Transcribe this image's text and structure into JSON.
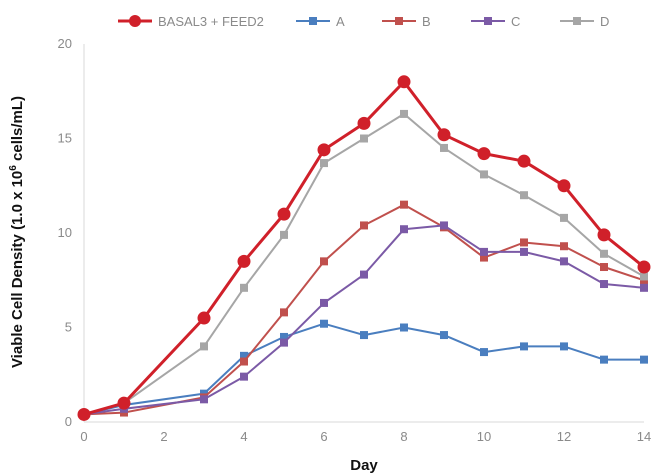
{
  "chart_data": {
    "type": "line",
    "title": "",
    "xlabel": "Day",
    "ylabel_main": "Viable Cell Density (1.0 x 10",
    "ylabel_sup": "6",
    "ylabel_tail": " cells/mL)",
    "xlim": [
      0,
      14
    ],
    "ylim": [
      0,
      20
    ],
    "xticks": [
      0,
      2,
      4,
      6,
      8,
      10,
      12,
      14
    ],
    "yticks": [
      0,
      5,
      10,
      15,
      20
    ],
    "grid": false,
    "legend_position": "top",
    "series": [
      {
        "name": "BASAL3 + FEED2",
        "color": "#d0202a",
        "marker": "circle",
        "x": [
          0,
          1,
          3,
          4,
          5,
          6,
          7,
          8,
          9,
          10,
          11,
          12,
          13,
          14
        ],
        "y": [
          0.4,
          1.0,
          5.5,
          8.5,
          11.0,
          14.4,
          15.8,
          18.0,
          15.2,
          14.2,
          13.8,
          12.5,
          9.9,
          8.2
        ]
      },
      {
        "name": "A",
        "color": "#4a7ebf",
        "marker": "square",
        "x": [
          0,
          1,
          3,
          4,
          5,
          6,
          7,
          8,
          9,
          10,
          11,
          12,
          13,
          14
        ],
        "y": [
          0.4,
          0.9,
          1.5,
          3.5,
          4.5,
          5.2,
          4.6,
          5.0,
          4.6,
          3.7,
          4.0,
          4.0,
          3.3,
          3.3
        ]
      },
      {
        "name": "B",
        "color": "#c0504d",
        "marker": "square",
        "x": [
          0,
          1,
          3,
          4,
          5,
          6,
          7,
          8,
          9,
          10,
          11,
          12,
          13,
          14
        ],
        "y": [
          0.4,
          0.5,
          1.3,
          3.2,
          5.8,
          8.5,
          10.4,
          11.5,
          10.3,
          8.7,
          9.5,
          9.3,
          8.2,
          7.5
        ]
      },
      {
        "name": "C",
        "color": "#7b5aa6",
        "marker": "square",
        "x": [
          0,
          1,
          3,
          4,
          5,
          6,
          7,
          8,
          9,
          10,
          11,
          12,
          13,
          14
        ],
        "y": [
          0.4,
          0.7,
          1.2,
          2.4,
          4.2,
          6.3,
          7.8,
          10.2,
          10.4,
          9.0,
          9.0,
          8.5,
          7.3,
          7.1
        ]
      },
      {
        "name": "D",
        "color": "#a6a6a6",
        "marker": "square",
        "x": [
          0,
          1,
          3,
          4,
          5,
          6,
          7,
          8,
          9,
          10,
          11,
          12,
          13,
          14
        ],
        "y": [
          0.4,
          1.0,
          4.0,
          7.1,
          9.9,
          13.7,
          15.0,
          16.3,
          14.5,
          13.1,
          12.0,
          10.8,
          8.9,
          7.7
        ]
      }
    ]
  }
}
